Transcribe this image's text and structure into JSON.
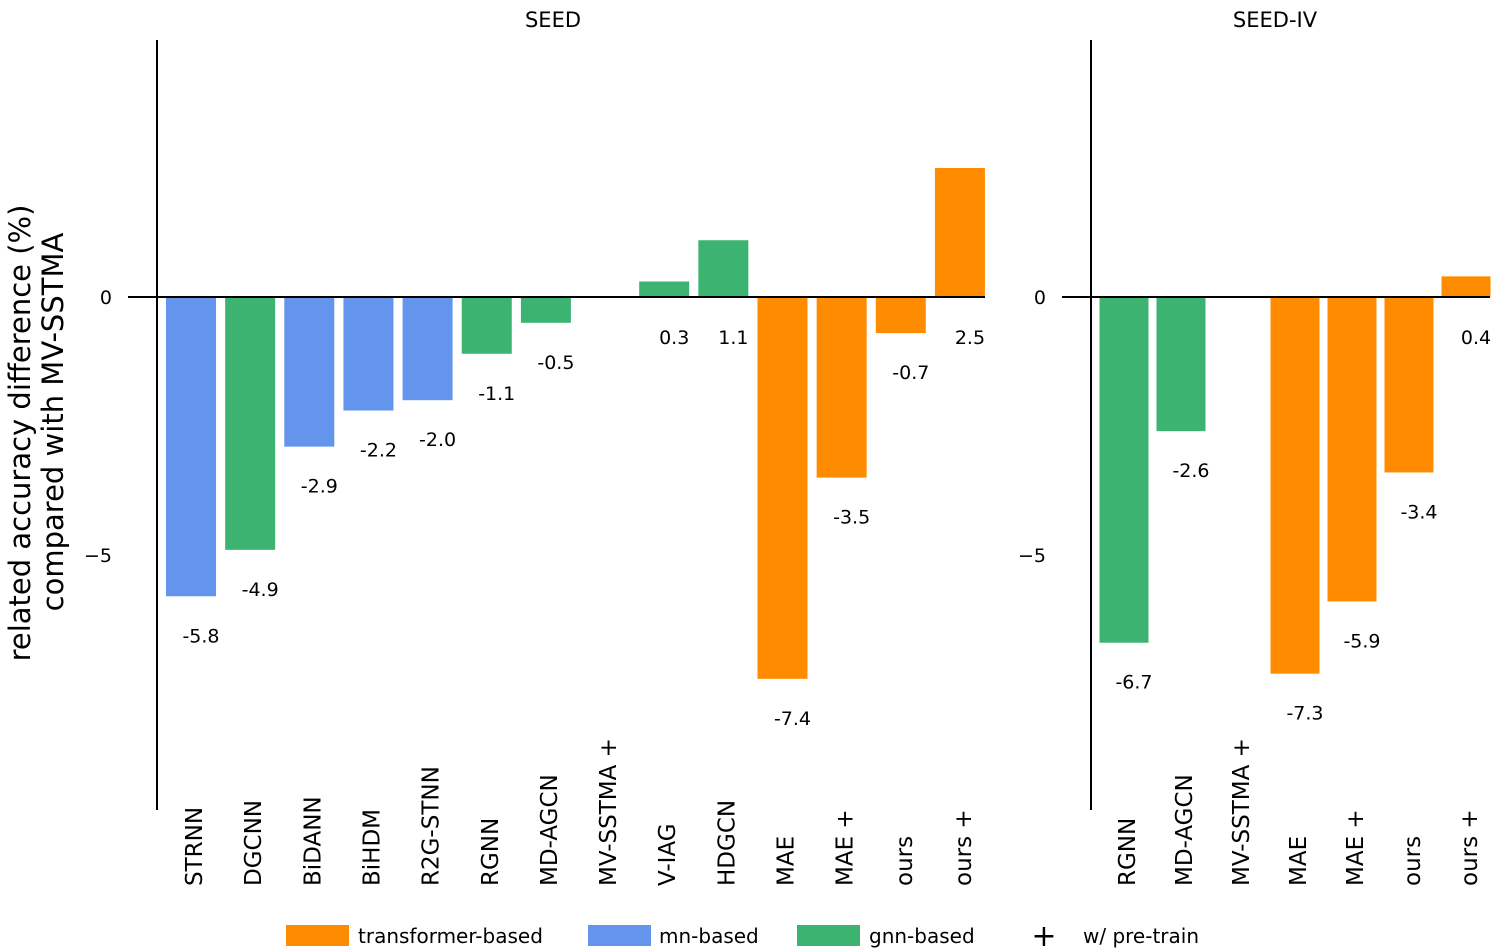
{
  "chart_data": [
    {
      "type": "bar",
      "title": "SEED",
      "ylabel": [
        "related accuracy difference (%)",
        "compared with MV-SSTMA"
      ],
      "xlabel": "",
      "ylim": [
        -10,
        5
      ],
      "yticks": [
        0,
        -5
      ],
      "ytick_labels": [
        "0",
        "−5"
      ],
      "grid": false,
      "categories": [
        "STRNN",
        "DGCNN",
        "BiDANN",
        "BiHDM",
        "R2G-STNN",
        "RGNN",
        "MD-AGCN",
        "MV-SSTMA +",
        "V-IAG",
        "HDGCN",
        "MAE",
        "MAE +",
        "ours",
        "ours +"
      ],
      "values": [
        -5.8,
        -4.9,
        -2.9,
        -2.2,
        -2.0,
        -1.1,
        -0.5,
        null,
        0.3,
        1.1,
        -7.4,
        -3.5,
        -0.7,
        2.5
      ],
      "data_labels": [
        "-5.8",
        "-4.9",
        "-2.9",
        "-2.2",
        "-2.0",
        "-1.1",
        "-0.5",
        "",
        "0.3",
        "1.1",
        "-7.4",
        "-3.5",
        "-0.7",
        "2.5"
      ],
      "groups": [
        "rnn",
        "gnn",
        "rnn",
        "rnn",
        "rnn",
        "gnn",
        "gnn",
        "none",
        "gnn",
        "gnn",
        "transformer",
        "transformer",
        "transformer",
        "transformer"
      ]
    },
    {
      "type": "bar",
      "title": "SEED-IV",
      "ylabel": "",
      "xlabel": "",
      "ylim": [
        -10,
        5
      ],
      "yticks": [
        0,
        -5
      ],
      "ytick_labels": [
        "0",
        "−5"
      ],
      "grid": false,
      "categories": [
        "RGNN",
        "MD-AGCN",
        "MV-SSTMA +",
        "MAE",
        "MAE +",
        "ours",
        "ours +"
      ],
      "values": [
        -6.7,
        -2.6,
        null,
        -7.3,
        -5.9,
        -3.4,
        0.4
      ],
      "data_labels": [
        "-6.7",
        "-2.6",
        "",
        "-7.3",
        "-5.9",
        "-3.4",
        "0.4"
      ],
      "groups": [
        "gnn",
        "gnn",
        "none",
        "transformer",
        "transformer",
        "transformer",
        "transformer"
      ]
    }
  ],
  "legend": {
    "placement": "bottom-center",
    "items": [
      {
        "label": "transformer-based",
        "group": "transformer",
        "kind": "patch"
      },
      {
        "label": "mn-based",
        "group": "rnn",
        "kind": "patch"
      },
      {
        "label": "gnn-based",
        "group": "gnn",
        "kind": "patch"
      },
      {
        "label": "w/ pre-train",
        "group": "pretrain",
        "kind": "plus-marker",
        "symbol": "+"
      }
    ]
  },
  "colors": {
    "transformer": "#ff8c00",
    "rnn": "#6495ed",
    "gnn": "#3cb371",
    "axis": "#000000"
  }
}
